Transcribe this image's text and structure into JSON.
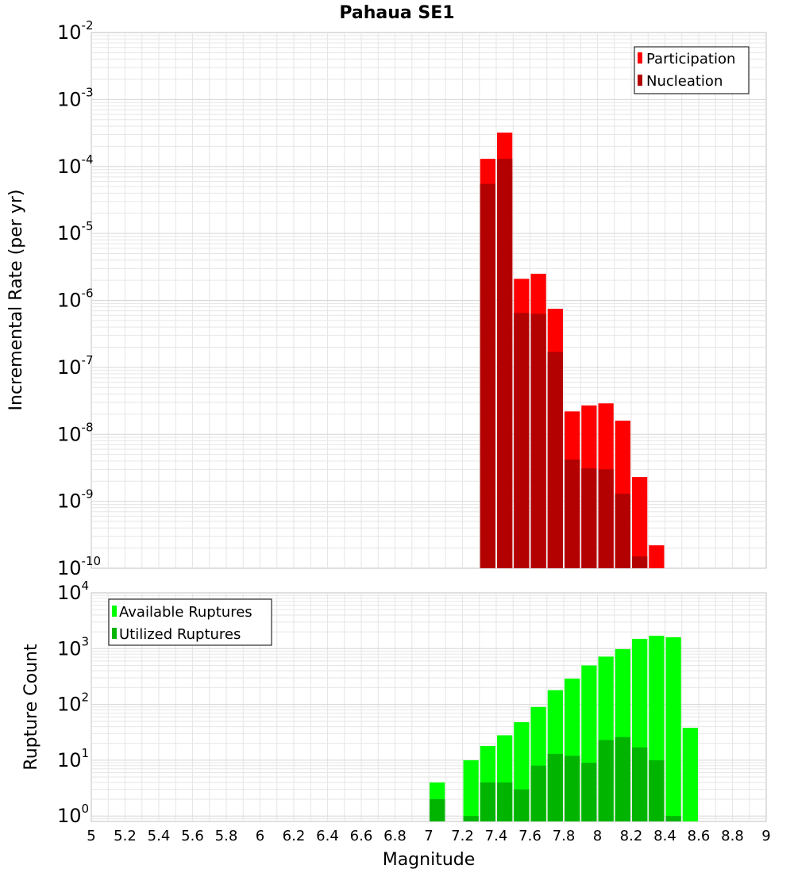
{
  "title": "Pahaua SE1",
  "colors": {
    "participation": "#ff0000",
    "nucleation": "#b30000",
    "available": "#00ff00",
    "utilized": "#00b400",
    "grid": "#e6e6e6",
    "frame": "#c0c0c0"
  },
  "chart_data": [
    {
      "type": "bar",
      "title": "Pahaua SE1",
      "xlabel": "Magnitude",
      "ylabel": "Incremental Rate (per yr)",
      "yscale": "log",
      "ylim": [
        1e-10,
        0.01
      ],
      "xlim": [
        5,
        9
      ],
      "grid": true,
      "legend_position": "top-right",
      "bin_width": 0.1,
      "x": [
        7.35,
        7.45,
        7.55,
        7.65,
        7.75,
        7.85,
        7.95,
        8.05,
        8.15,
        8.25,
        8.35
      ],
      "series": [
        {
          "name": "Participation",
          "values": [
            0.00013,
            0.00032,
            2.1e-06,
            2.5e-06,
            7.5e-07,
            2.2e-08,
            2.7e-08,
            2.9e-08,
            1.6e-08,
            2.3e-09,
            2.2e-10
          ]
        },
        {
          "name": "Nucleation",
          "values": [
            5.5e-05,
            0.00013,
            6.5e-07,
            6.3e-07,
            1.7e-07,
            4.2e-09,
            3.1e-09,
            3e-09,
            1.3e-09,
            1.5e-10,
            null
          ]
        }
      ],
      "ytick_labels": [
        {
          "base": "10",
          "exp": "-10"
        },
        {
          "base": "10",
          "exp": "-9"
        },
        {
          "base": "10",
          "exp": "-8"
        },
        {
          "base": "10",
          "exp": "-7"
        },
        {
          "base": "10",
          "exp": "-6"
        },
        {
          "base": "10",
          "exp": "-5"
        },
        {
          "base": "10",
          "exp": "-4"
        },
        {
          "base": "10",
          "exp": "-3"
        },
        {
          "base": "10",
          "exp": "-2"
        }
      ]
    },
    {
      "type": "bar",
      "xlabel": "Magnitude",
      "ylabel": "Rupture Count",
      "yscale": "log",
      "ylim": [
        0.8,
        10000
      ],
      "xlim": [
        5,
        9
      ],
      "grid": true,
      "legend_position": "top-left",
      "bin_width": 0.1,
      "x": [
        7.05,
        7.25,
        7.35,
        7.45,
        7.55,
        7.65,
        7.75,
        7.85,
        7.95,
        8.05,
        8.15,
        8.25,
        8.35,
        8.45,
        8.55
      ],
      "series": [
        {
          "name": "Available Ruptures",
          "values": [
            4,
            10,
            18,
            28,
            48,
            90,
            180,
            290,
            500,
            720,
            980,
            1500,
            1700,
            1600,
            38
          ]
        },
        {
          "name": "Utilized Ruptures",
          "values": [
            2,
            1,
            4,
            4,
            3,
            8,
            13,
            12,
            9,
            23,
            26,
            17,
            10,
            1,
            null
          ]
        }
      ],
      "ytick_labels": [
        {
          "base": "10",
          "exp": "0"
        },
        {
          "base": "10",
          "exp": "1"
        },
        {
          "base": "10",
          "exp": "2"
        },
        {
          "base": "10",
          "exp": "3"
        },
        {
          "base": "10",
          "exp": "4"
        }
      ],
      "xtick_labels": [
        "5",
        "5.2",
        "5.4",
        "5.6",
        "5.8",
        "6",
        "6.2",
        "6.4",
        "6.6",
        "6.8",
        "7",
        "7.2",
        "7.4",
        "7.6",
        "7.8",
        "8",
        "8.2",
        "8.4",
        "8.6",
        "8.8",
        "9"
      ]
    }
  ]
}
